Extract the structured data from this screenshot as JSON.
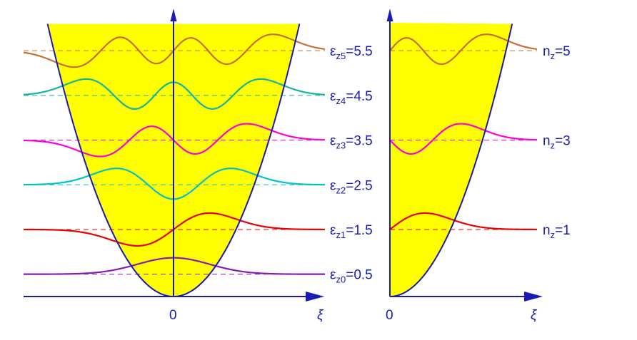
{
  "chart_data": [
    {
      "type": "line",
      "curve": "harmonic potential",
      "axis": {
        "x_label": "ξ",
        "origin_label": "0"
      },
      "fill_color": "#ffff00",
      "line_color": "#1a1ab4",
      "levels": [
        {
          "n": 0,
          "eps_prefix": "ε",
          "sub": "z0",
          "value_text": "=0.5",
          "energy": 0.5,
          "color": "#8a1ab4"
        },
        {
          "n": 1,
          "eps_prefix": "ε",
          "sub": "z1",
          "value_text": "=1.5",
          "energy": 1.5,
          "color": "#e80000"
        },
        {
          "n": 2,
          "eps_prefix": "ε",
          "sub": "z2",
          "value_text": "=2.5",
          "energy": 2.5,
          "color": "#00c4c4"
        },
        {
          "n": 3,
          "eps_prefix": "ε",
          "sub": "z3",
          "value_text": "=3.5",
          "energy": 3.5,
          "color": "#ff00dc"
        },
        {
          "n": 4,
          "eps_prefix": "ε",
          "sub": "z4",
          "value_text": "=4.5",
          "energy": 4.5,
          "color": "#14b4a0"
        },
        {
          "n": 5,
          "eps_prefix": "ε",
          "sub": "z5",
          "value_text": "=5.5",
          "energy": 5.5,
          "color": "#c86e32"
        }
      ]
    },
    {
      "type": "line",
      "curve": "half harmonic potential",
      "axis": {
        "x_label": "ξ",
        "origin_label": "0"
      },
      "fill_color": "#ffff00",
      "line_color": "#1a1ab4",
      "levels": [
        {
          "n": 1,
          "prefix": "n",
          "sub": "z",
          "value_text": "=1",
          "energy": 1.5,
          "color": "#e80000"
        },
        {
          "n": 3,
          "prefix": "n",
          "sub": "z",
          "value_text": "=3",
          "energy": 3.5,
          "color": "#ff00dc"
        },
        {
          "n": 5,
          "prefix": "n",
          "sub": "z",
          "value_text": "=5",
          "energy": 5.5,
          "color": "#c86e32"
        }
      ]
    }
  ]
}
